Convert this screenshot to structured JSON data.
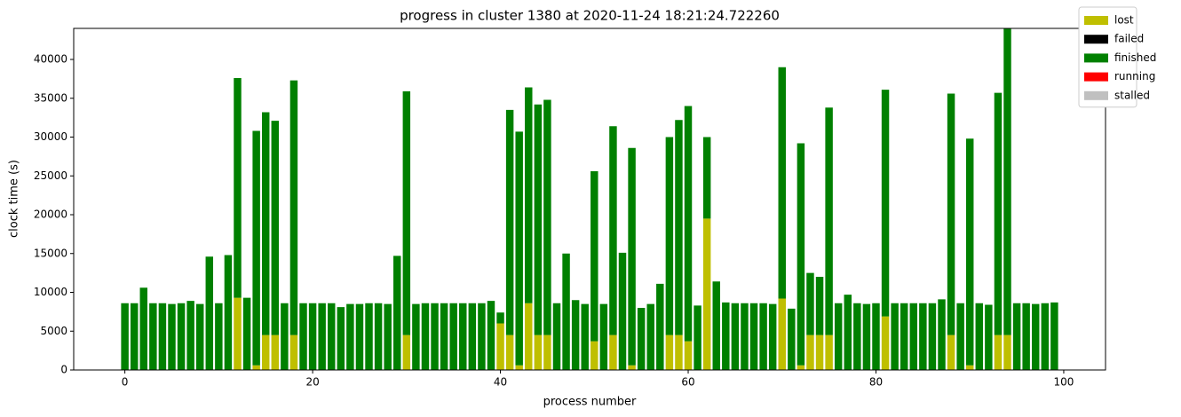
{
  "chart_data": {
    "type": "bar",
    "stacked": true,
    "title": "progress in cluster 1380 at 2020-11-24 18:21:24.722260",
    "xlabel": "process number",
    "ylabel": "clock time (s)",
    "x": [
      0,
      1,
      2,
      3,
      4,
      5,
      6,
      7,
      8,
      9,
      10,
      11,
      12,
      13,
      14,
      15,
      16,
      17,
      18,
      19,
      20,
      21,
      22,
      23,
      24,
      25,
      26,
      27,
      28,
      29,
      30,
      31,
      32,
      33,
      34,
      35,
      36,
      37,
      38,
      39,
      40,
      41,
      42,
      43,
      44,
      45,
      46,
      47,
      48,
      49,
      50,
      51,
      52,
      53,
      54,
      55,
      56,
      57,
      58,
      59,
      60,
      61,
      62,
      63,
      64,
      65,
      66,
      67,
      68,
      69,
      70,
      71,
      72,
      73,
      74,
      75,
      76,
      77,
      78,
      79,
      80,
      81,
      82,
      83,
      84,
      85,
      86,
      87,
      88,
      89,
      90,
      91,
      92,
      93,
      94,
      95,
      96,
      97,
      98,
      99
    ],
    "series": [
      {
        "name": "lost",
        "color": "#bfbf00",
        "values": [
          0,
          0,
          0,
          0,
          0,
          0,
          0,
          0,
          0,
          0,
          0,
          0,
          9300,
          0,
          600,
          4500,
          4500,
          0,
          4500,
          0,
          0,
          0,
          0,
          0,
          0,
          0,
          0,
          0,
          0,
          0,
          4500,
          0,
          0,
          0,
          0,
          0,
          0,
          0,
          0,
          0,
          6000,
          4500,
          600,
          8600,
          4500,
          4500,
          0,
          0,
          0,
          0,
          3700,
          0,
          4500,
          0,
          600,
          0,
          0,
          0,
          4500,
          4500,
          3700,
          0,
          19500,
          0,
          0,
          0,
          0,
          0,
          0,
          0,
          9200,
          0,
          600,
          4500,
          4500,
          4500,
          0,
          0,
          0,
          0,
          0,
          6900,
          0,
          0,
          0,
          0,
          0,
          0,
          4500,
          0,
          600,
          0,
          0,
          4500,
          4500,
          0,
          0,
          0,
          0,
          0
        ]
      },
      {
        "name": "failed",
        "color": "#000000",
        "values": [
          0,
          0,
          0,
          0,
          0,
          0,
          0,
          0,
          0,
          0,
          0,
          0,
          0,
          0,
          0,
          0,
          0,
          0,
          0,
          0,
          0,
          0,
          0,
          0,
          0,
          0,
          0,
          0,
          0,
          0,
          0,
          0,
          0,
          0,
          0,
          0,
          0,
          0,
          0,
          0,
          0,
          0,
          0,
          0,
          0,
          0,
          0,
          0,
          0,
          0,
          0,
          0,
          0,
          0,
          0,
          0,
          0,
          0,
          0,
          0,
          0,
          0,
          0,
          0,
          0,
          0,
          0,
          0,
          0,
          0,
          0,
          0,
          0,
          0,
          0,
          0,
          0,
          0,
          0,
          0,
          0,
          0,
          0,
          0,
          0,
          0,
          0,
          0,
          0,
          0,
          0,
          0,
          0,
          0,
          0,
          0,
          0,
          0,
          0,
          0
        ]
      },
      {
        "name": "finished",
        "color": "#008000",
        "values": [
          8600,
          8600,
          10600,
          8600,
          8600,
          8500,
          8600,
          8900,
          8500,
          14600,
          8600,
          14800,
          28300,
          9300,
          30200,
          28700,
          27600,
          8600,
          32800,
          8600,
          8600,
          8600,
          8600,
          8100,
          8500,
          8500,
          8600,
          8600,
          8500,
          14700,
          31400,
          8500,
          8600,
          8600,
          8600,
          8600,
          8600,
          8600,
          8600,
          8900,
          1400,
          29000,
          30100,
          27800,
          29700,
          30300,
          8600,
          15000,
          9000,
          8500,
          21900,
          8500,
          26900,
          15100,
          28000,
          8000,
          8500,
          11100,
          25500,
          27700,
          30300,
          8300,
          10500,
          11400,
          8700,
          8600,
          8600,
          8600,
          8600,
          8500,
          29800,
          7900,
          28600,
          8000,
          7500,
          29300,
          8600,
          9700,
          8600,
          8500,
          8600,
          29200,
          8600,
          8600,
          8600,
          8600,
          8600,
          9100,
          31100,
          8600,
          29200,
          8600,
          8400,
          31200,
          40500,
          8600,
          8600,
          8500,
          8600,
          8700
        ]
      },
      {
        "name": "running",
        "color": "#ff0000",
        "values": [
          0,
          0,
          0,
          0,
          0,
          0,
          0,
          0,
          0,
          0,
          0,
          0,
          0,
          0,
          0,
          0,
          0,
          0,
          0,
          0,
          0,
          0,
          0,
          0,
          0,
          0,
          0,
          0,
          0,
          0,
          0,
          0,
          0,
          0,
          0,
          0,
          0,
          0,
          0,
          0,
          0,
          0,
          0,
          0,
          0,
          0,
          0,
          0,
          0,
          0,
          0,
          0,
          0,
          0,
          0,
          0,
          0,
          0,
          0,
          0,
          0,
          0,
          0,
          0,
          0,
          0,
          0,
          0,
          0,
          0,
          0,
          0,
          0,
          0,
          0,
          0,
          0,
          0,
          0,
          0,
          0,
          0,
          0,
          0,
          0,
          0,
          0,
          0,
          0,
          0,
          0,
          0,
          0,
          0,
          0,
          0,
          0,
          0,
          0,
          0
        ]
      },
      {
        "name": "stalled",
        "color": "#c0c0c0",
        "values": [
          0,
          0,
          0,
          0,
          0,
          0,
          0,
          0,
          0,
          0,
          0,
          0,
          0,
          0,
          0,
          0,
          0,
          0,
          0,
          0,
          0,
          0,
          0,
          0,
          0,
          0,
          0,
          0,
          0,
          0,
          0,
          0,
          0,
          0,
          0,
          0,
          0,
          0,
          0,
          0,
          0,
          0,
          0,
          0,
          0,
          0,
          0,
          0,
          0,
          0,
          0,
          0,
          0,
          0,
          0,
          0,
          0,
          0,
          0,
          0,
          0,
          0,
          0,
          0,
          0,
          0,
          0,
          0,
          0,
          0,
          0,
          0,
          0,
          0,
          0,
          0,
          0,
          0,
          0,
          0,
          0,
          0,
          0,
          0,
          0,
          0,
          0,
          0,
          0,
          0,
          0,
          0,
          0,
          0,
          0,
          0,
          0,
          0,
          0,
          0
        ]
      }
    ],
    "xlim": [
      -5.45,
      104.45
    ],
    "xticks": [
      0,
      20,
      40,
      60,
      80,
      100
    ],
    "ylim": [
      0,
      44000
    ],
    "yticks": [
      0,
      5000,
      10000,
      15000,
      20000,
      25000,
      30000,
      35000,
      40000
    ],
    "bar_width": 0.8,
    "grid": false,
    "legend": "upper right outside"
  }
}
